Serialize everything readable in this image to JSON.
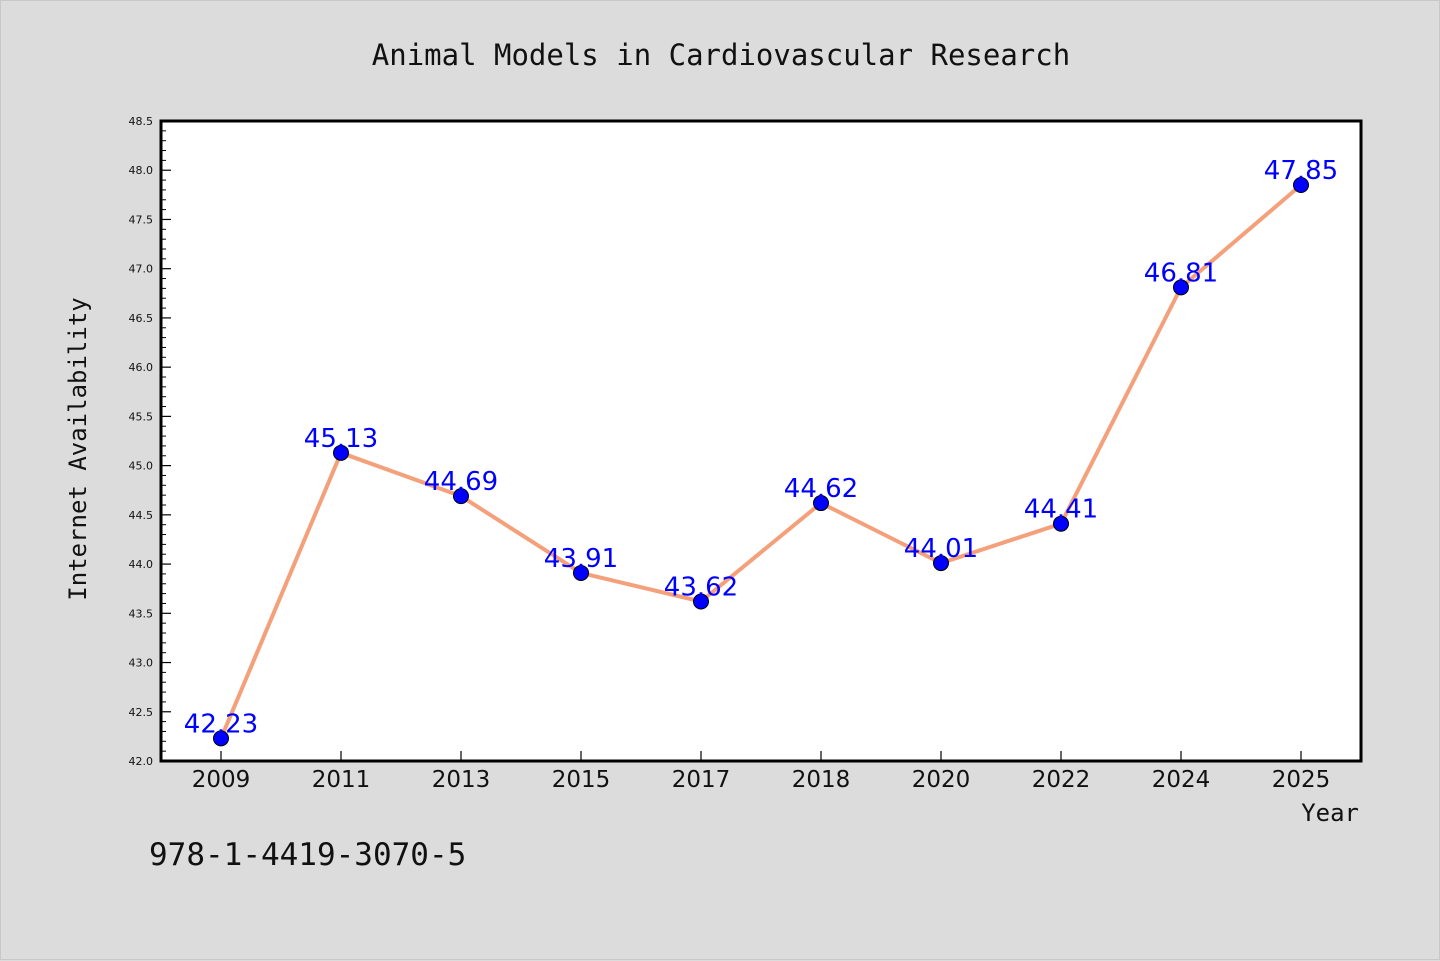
{
  "chart_data": {
    "type": "line",
    "title": "Animal Models in Cardiovascular Research",
    "xlabel": "Year",
    "ylabel": "Internet Availability",
    "categories": [
      "2009",
      "2011",
      "2013",
      "2015",
      "2017",
      "2018",
      "2020",
      "2022",
      "2024",
      "2025"
    ],
    "series": [
      {
        "values": [
          42.23,
          45.13,
          44.69,
          43.91,
          43.62,
          44.62,
          44.01,
          44.41,
          46.81,
          47.85
        ]
      }
    ],
    "ylim": [
      42.0,
      48.5
    ],
    "yticks": [
      "42.0",
      "42.5",
      "43.0",
      "43.5",
      "44.0",
      "44.5",
      "45.0",
      "45.5",
      "46.0",
      "46.5",
      "47.0",
      "47.5",
      "48.0",
      "48.5"
    ],
    "data_labels": [
      "42.23",
      "45.13",
      "44.69",
      "43.91",
      "43.62",
      "44.62",
      "44.01",
      "44.41",
      "46.81",
      "47.85"
    ],
    "grid": false,
    "legend": "none",
    "colors": {
      "line": "#f4a07a",
      "marker": "#0000ff",
      "label": "#0000ff",
      "background": "#dcdcdc",
      "plot_bg": "#ffffff"
    }
  },
  "footer": {
    "isbn": "978-1-4419-3070-5"
  }
}
